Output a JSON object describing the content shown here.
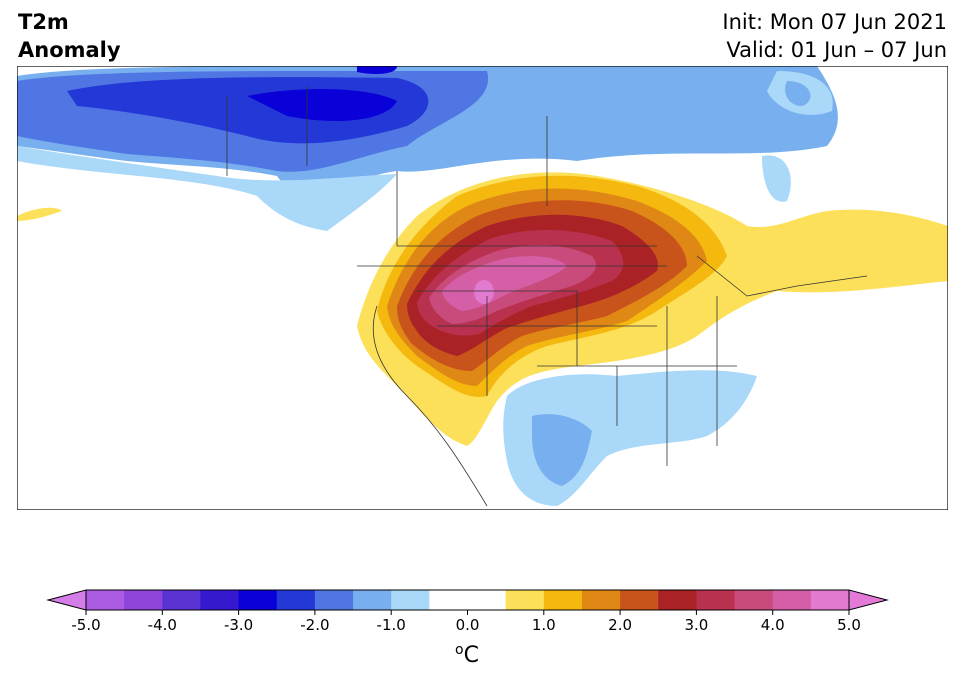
{
  "title": {
    "line1": "T2m",
    "line2": "Anomaly"
  },
  "init_label": "Init: Mon 07 Jun 2021",
  "valid_label": "Valid: 01 Jun – 07 Jun",
  "colorbar": {
    "unit": "°C",
    "ticks": [
      "-5.0",
      "-4.0",
      "-3.0",
      "-2.0",
      "-1.0",
      "0.0",
      "1.0",
      "2.0",
      "3.0",
      "4.0",
      "5.0"
    ],
    "extend_low_color": "#d67ee8",
    "extend_high_color": "#e47ad8",
    "colors": [
      "#ab5ce2",
      "#8f45da",
      "#5a32d2",
      "#3519cf",
      "#0a00d8",
      "#2438d8",
      "#4f76e3",
      "#78afee",
      "#aad8f9",
      "#ffffff",
      "#ffffff",
      "#fde05a",
      "#f4b80f",
      "#e08816",
      "#c8541b",
      "#ab2226",
      "#b8314e",
      "#c84b7b",
      "#d55fa6",
      "#e27ad0"
    ]
  }
}
